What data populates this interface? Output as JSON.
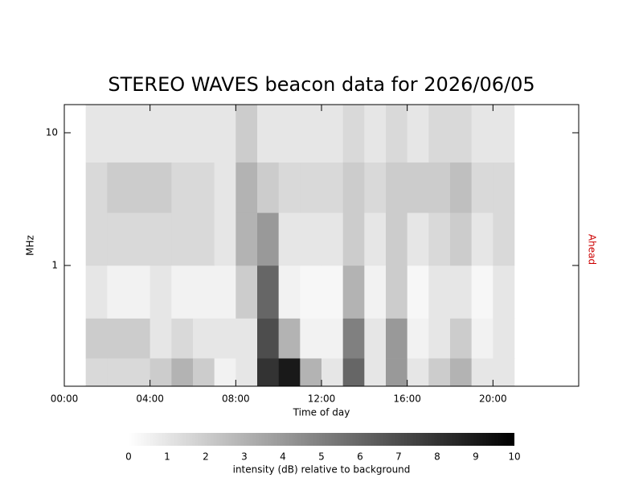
{
  "chart_data": {
    "type": "heatmap",
    "title": "STEREO WAVES beacon data for 2026/06/05",
    "x_label": "Time of day",
    "y_label": "MHz",
    "right_label": "Ahead",
    "right_label_color": "#cc0000",
    "xlim": [
      0,
      24
    ],
    "xticks": [
      {
        "value": 0,
        "label": "00:00"
      },
      {
        "value": 4,
        "label": "04:00"
      },
      {
        "value": 8,
        "label": "08:00"
      },
      {
        "value": 12,
        "label": "12:00"
      },
      {
        "value": 16,
        "label": "16:00"
      },
      {
        "value": 20,
        "label": "20:00"
      }
    ],
    "ylim": [
      0.123,
      16.3
    ],
    "log_y": true,
    "yticks": [
      1,
      10
    ],
    "x_edges": [
      0,
      1,
      2,
      3,
      4,
      5,
      6,
      7,
      8,
      9,
      10,
      11,
      12,
      13,
      14,
      15,
      16,
      17,
      18,
      19,
      20,
      21,
      22,
      23,
      24
    ],
    "y_edges": [
      0.123,
      0.2,
      0.4,
      1,
      2.5,
      6,
      16.3
    ],
    "z": [
      [
        null,
        1.5,
        1.5,
        1.5,
        2,
        3,
        2,
        0.5,
        1,
        8,
        9,
        3,
        1,
        6,
        1,
        4,
        1,
        2,
        3,
        1,
        1,
        null,
        null,
        null
      ],
      [
        null,
        2,
        2,
        2,
        1,
        1.5,
        1,
        1,
        1,
        7,
        3,
        0.5,
        0.5,
        5,
        1,
        4,
        0.5,
        1,
        2,
        0.5,
        1,
        null,
        null,
        null
      ],
      [
        null,
        1,
        0.5,
        0.5,
        1,
        0.5,
        0.5,
        0.5,
        2,
        6,
        0.5,
        0.3,
        0.3,
        3,
        0.5,
        2,
        0.3,
        1,
        1,
        0.3,
        1,
        null,
        null,
        null
      ],
      [
        null,
        1.5,
        1.5,
        1.5,
        1.5,
        1.5,
        1.5,
        1,
        3,
        4,
        1,
        1,
        1,
        2,
        1,
        2,
        1,
        1.5,
        2,
        1,
        1.5,
        null,
        null,
        null
      ],
      [
        null,
        1.5,
        2,
        2,
        2,
        1.5,
        1.5,
        1,
        3,
        2,
        1.5,
        1.5,
        1.5,
        2,
        1.5,
        2,
        2,
        2,
        2.5,
        1.5,
        1.5,
        null,
        null,
        null
      ],
      [
        null,
        1,
        1,
        1,
        1,
        1,
        1,
        1,
        2,
        1,
        1,
        1,
        1,
        1.5,
        1,
        1.5,
        1,
        1.5,
        1.5,
        1,
        1,
        null,
        null,
        null
      ]
    ],
    "colorbar": {
      "label": "intensity (dB) relative to background",
      "lim": [
        0,
        10
      ],
      "ticks": [
        0,
        1,
        2,
        3,
        4,
        5,
        6,
        7,
        8,
        9,
        10
      ]
    }
  }
}
